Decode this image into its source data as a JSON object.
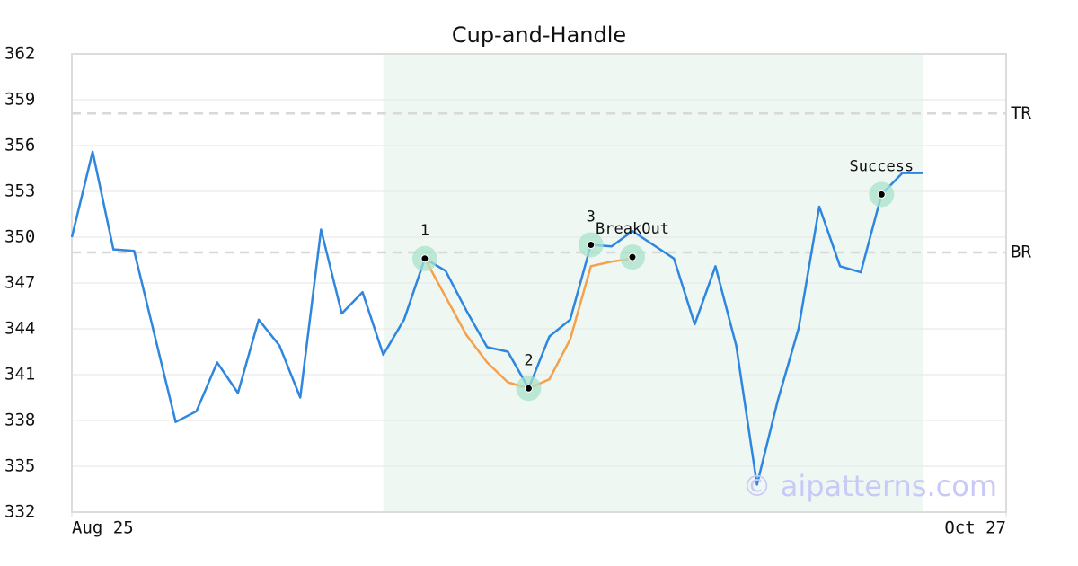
{
  "chart_data": {
    "type": "line",
    "title": "Cup-and-Handle",
    "x": [
      0,
      1,
      2,
      3,
      4,
      5,
      6,
      7,
      8,
      9,
      10,
      11,
      12,
      13,
      14,
      15,
      16,
      17,
      18,
      19,
      20,
      21,
      22,
      23,
      24,
      25,
      26,
      27,
      28,
      29,
      30,
      31,
      32,
      33,
      34,
      35,
      36,
      37,
      38,
      39,
      40,
      41
    ],
    "series": [
      {
        "color": "#2e86de",
        "values": [
          350.0,
          355.6,
          349.2,
          349.1,
          343.5,
          337.9,
          338.6,
          341.8,
          339.8,
          344.6,
          342.9,
          339.5,
          350.5,
          345.0,
          346.4,
          342.3,
          344.6,
          348.6,
          347.8,
          345.2,
          342.8,
          342.5,
          340.1,
          343.5,
          344.6,
          349.5,
          349.4,
          350.4,
          349.5,
          348.6,
          344.3,
          348.1,
          342.9,
          333.8,
          339.3,
          344.0,
          352.0,
          348.1,
          347.7,
          352.8,
          354.2,
          354.2
        ]
      },
      {
        "color": "#f5a04a",
        "values": [
          null,
          null,
          null,
          null,
          null,
          null,
          null,
          null,
          null,
          null,
          null,
          null,
          null,
          null,
          null,
          null,
          null,
          348.6,
          346.1,
          343.6,
          341.8,
          340.5,
          340.1,
          340.7,
          343.3,
          348.1,
          348.4,
          348.6,
          null,
          null,
          null,
          null,
          null,
          null,
          null,
          null,
          null,
          null,
          null,
          null,
          null,
          null
        ]
      }
    ],
    "xlim": [
      0,
      45
    ],
    "xticks": [
      {
        "value": 0,
        "label": "Aug 25"
      },
      {
        "value": 45,
        "label": "Oct 27"
      }
    ],
    "ylim": [
      332,
      362
    ],
    "yticks": [
      332,
      335,
      338,
      341,
      344,
      347,
      350,
      353,
      356,
      359,
      362
    ],
    "grid": true,
    "shaded_region": {
      "x_start": 15,
      "x_end": 41,
      "color": "#eef7f2"
    },
    "reference_lines": [
      {
        "label": "TR",
        "value": 358.1
      },
      {
        "label": "BR",
        "value": 349.0
      }
    ],
    "annotations": [
      {
        "label": "1",
        "x": 17,
        "y": 348.6
      },
      {
        "label": "2",
        "x": 22,
        "y": 340.1
      },
      {
        "label": "3",
        "x": 25,
        "y": 349.5
      },
      {
        "label": "BreakOut",
        "x": 27,
        "y": 348.7
      },
      {
        "label": "Success",
        "x": 39,
        "y": 352.8
      }
    ],
    "watermark": "© aipatterns.com"
  }
}
